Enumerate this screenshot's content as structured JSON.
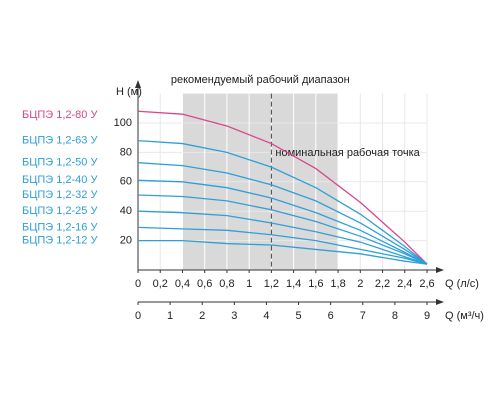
{
  "chart_data": {
    "type": "line",
    "annotations": [
      "рекомендуемый рабочий диапазон",
      "номинальная рабочая точка"
    ],
    "y_label": "H (м)",
    "x_label": "Q (л/с)",
    "x2_label": "Q (м³/ч)",
    "x": [
      0,
      0.4,
      0.8,
      1.2,
      1.6,
      2.0,
      2.4,
      2.6
    ],
    "series": [
      {
        "name": "БЦПЭ 1,2-80 У",
        "color": "#d9468a",
        "values": [
          108,
          106,
          98,
          86,
          69,
          46,
          19,
          4
        ]
      },
      {
        "name": "БЦПЭ 1,2-63 У",
        "color": "#2f9fd8",
        "values": [
          88,
          86,
          80,
          70,
          56,
          38,
          16,
          4
        ]
      },
      {
        "name": "БЦПЭ 1,2-50 У",
        "color": "#2f9fd8",
        "values": [
          73,
          71,
          66,
          58,
          47,
          32,
          14,
          4
        ]
      },
      {
        "name": "БЦПЭ 1,2-40 У",
        "color": "#2f9fd8",
        "values": [
          61,
          60,
          56,
          49,
          39,
          27,
          12,
          4
        ]
      },
      {
        "name": "БЦПЭ 1,2-32 У",
        "color": "#2f9fd8",
        "values": [
          51,
          50,
          47,
          41,
          33,
          23,
          11,
          4
        ]
      },
      {
        "name": "БЦПЭ 1,2-25 У",
        "color": "#2f9fd8",
        "values": [
          40,
          39,
          37,
          32,
          26,
          19,
          9,
          4
        ]
      },
      {
        "name": "БЦПЭ 1,2-16 У",
        "color": "#2f9fd8",
        "values": [
          29,
          28,
          27,
          24,
          20,
          14,
          8,
          4
        ]
      },
      {
        "name": "БЦПЭ 1,2-12 У",
        "color": "#2f9fd8",
        "values": [
          20,
          20,
          18,
          17,
          14,
          11,
          6,
          4
        ]
      }
    ],
    "xlim": [
      0,
      2.6
    ],
    "xticks": [
      0,
      {
        "value": 0.2,
        "label": "0,2"
      },
      {
        "value": 0.4,
        "label": "0,4"
      },
      {
        "value": 0.6,
        "label": "0,6"
      },
      {
        "value": 0.8,
        "label": "0,8"
      },
      1,
      {
        "value": 1.2,
        "label": "1,2"
      },
      {
        "value": 1.4,
        "label": "1,4"
      },
      {
        "value": 1.6,
        "label": "1,6"
      },
      {
        "value": 1.8,
        "label": "1,8"
      },
      2,
      {
        "value": 2.2,
        "label": "2,2"
      },
      {
        "value": 2.4,
        "label": "2,4"
      },
      {
        "value": 2.6,
        "label": "2,6"
      }
    ],
    "x2lim": [
      0,
      9
    ],
    "x2ticks": [
      0,
      1,
      2,
      3,
      4,
      5,
      6,
      7,
      8,
      9
    ],
    "ylim": [
      0,
      120
    ],
    "yticks": [
      20,
      40,
      60,
      80,
      100
    ],
    "range": [
      0.4,
      1.8
    ],
    "nominal": 1.2,
    "grid": true
  }
}
